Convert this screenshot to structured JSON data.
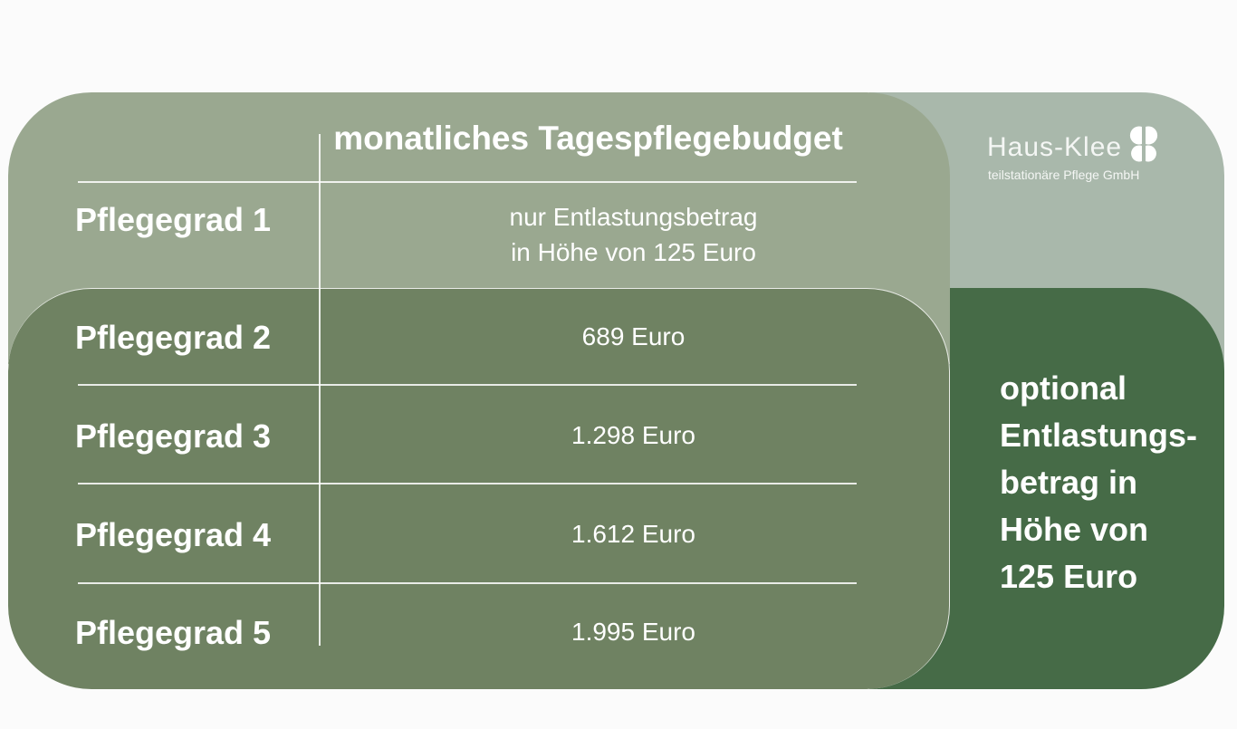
{
  "logo": {
    "name": "Haus-Klee",
    "subtitle": "teilstationäre Pflege GmbH"
  },
  "table": {
    "header": "monatliches Tagespflegebudget",
    "rows": [
      {
        "label": "Pflegegrad 1",
        "value_line1": "nur Entlastungsbetrag",
        "value_line2": "in Höhe von 125 Euro"
      },
      {
        "label": "Pflegegrad 2",
        "value": "689 Euro"
      },
      {
        "label": "Pflegegrad 3",
        "value": "1.298 Euro"
      },
      {
        "label": "Pflegegrad 4",
        "value": "1.612 Euro"
      },
      {
        "label": "Pflegegrad 5",
        "value": "1.995 Euro"
      }
    ]
  },
  "side_note": "optional Entlastungs- betrag in Höhe von 125 Euro",
  "colors": {
    "background": "#fbfbfb",
    "panel_light": "#9aa890",
    "panel_dark": "#6f8262",
    "side_light": "#a9b8ab",
    "side_dark": "#466b47",
    "text": "#ffffff"
  }
}
